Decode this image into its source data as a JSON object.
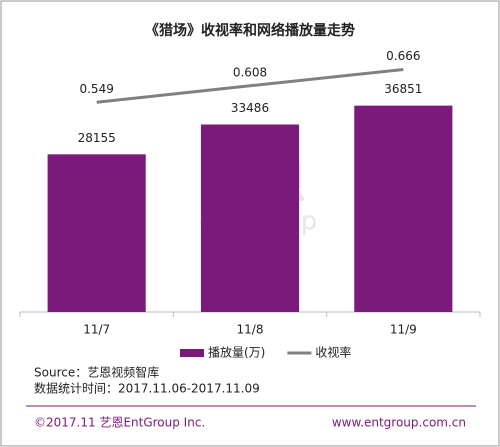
{
  "chart_data": {
    "type": "bar",
    "title": "《猎场》收视率和网络播放量走势",
    "categories": [
      "11/7",
      "11/8",
      "11/9"
    ],
    "series": [
      {
        "name": "播放量(万)",
        "type": "bar",
        "color": "#7b1a7b",
        "values": [
          28155,
          33486,
          36851
        ]
      },
      {
        "name": "收视率",
        "type": "line",
        "axis": "y2",
        "color": "#808080",
        "values": [
          0.549,
          0.608,
          0.666
        ]
      }
    ],
    "ylim": [
      0,
      45000
    ],
    "y2lim": [
      -0.2,
      0.7
    ],
    "legend": "bottom"
  },
  "source": "Source：艺恩视频智库",
  "stat_time": "数据统计时间：2017.11.06-2017.11.09",
  "footer": {
    "left": "©2017.11 艺恩EntGroup Inc.",
    "right": "www.entgroup.com.cn"
  },
  "watermark": {
    "cn": "艺恩",
    "en": "entgroup"
  }
}
